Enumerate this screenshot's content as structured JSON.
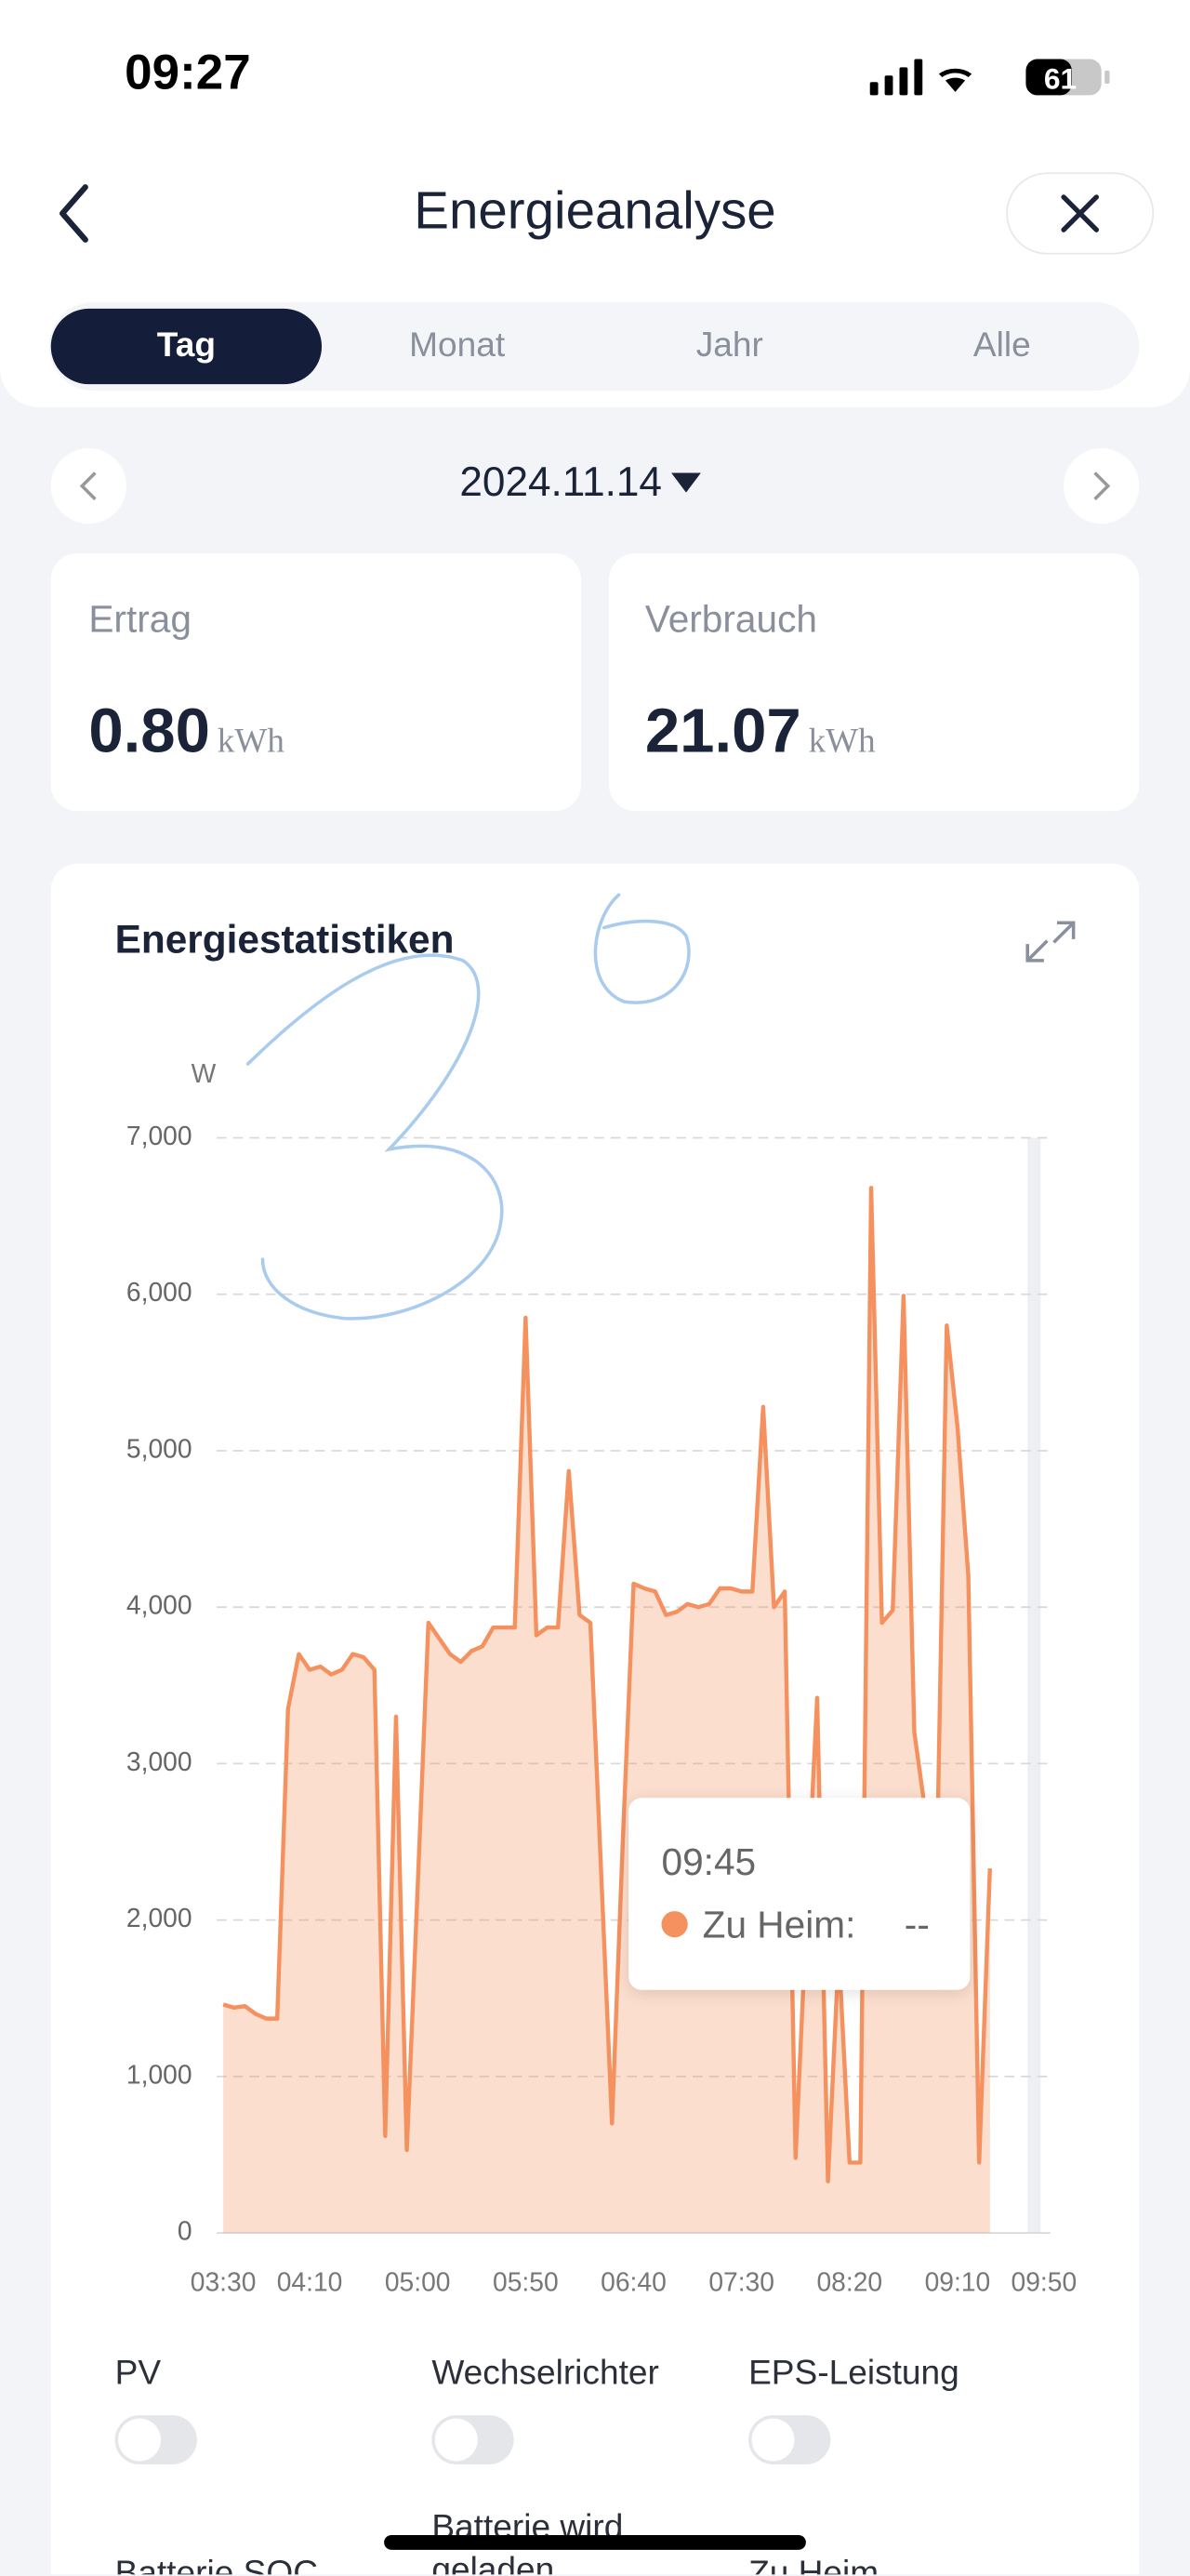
{
  "status_bar": {
    "time": "09:27",
    "battery": "61"
  },
  "header": {
    "title": "Energieanalyse"
  },
  "tabs": [
    "Tag",
    "Monat",
    "Jahr",
    "Alle"
  ],
  "date": "2024.11.14",
  "cards": [
    {
      "label": "Ertrag",
      "value": "0.80",
      "unit": "kWh"
    },
    {
      "label": "Verbrauch",
      "value": "21.07",
      "unit": "kWh"
    }
  ],
  "chart_data": {
    "type": "line",
    "title": "Energiestatistiken",
    "y_label": "W",
    "categories": [
      "03:30",
      null,
      null,
      null,
      null,
      null,
      null,
      null,
      "04:10",
      null,
      null,
      null,
      null,
      null,
      null,
      null,
      null,
      null,
      "05:00",
      null,
      null,
      null,
      null,
      null,
      null,
      null,
      null,
      null,
      "05:50",
      null,
      null,
      null,
      null,
      null,
      null,
      null,
      null,
      null,
      "06:40",
      null,
      null,
      null,
      null,
      null,
      null,
      null,
      null,
      null,
      "07:30",
      null,
      null,
      null,
      null,
      null,
      null,
      null,
      null,
      null,
      "08:20",
      null,
      null,
      null,
      null,
      null,
      null,
      null,
      null,
      null,
      "09:10",
      null,
      null,
      null,
      null,
      null,
      null,
      null,
      "09:50"
    ],
    "series": [
      {
        "color": "#f4915e",
        "values": [
          1460,
          1440,
          1450,
          1400,
          1370,
          1370,
          3350,
          3700,
          3600,
          3620,
          3570,
          3600,
          3700,
          3680,
          3600,
          620,
          3300,
          530,
          2200,
          3900,
          3800,
          3700,
          3650,
          3720,
          3750,
          3870,
          3870,
          3870,
          5850,
          3820,
          3870,
          3870,
          4870,
          3950,
          3900,
          2300,
          700,
          2500,
          4150,
          4120,
          4100,
          3950,
          3970,
          4020,
          4000,
          4020,
          4120,
          4120,
          4100,
          4100,
          5280,
          4000,
          4100,
          480,
          2000,
          3420,
          330,
          1800,
          450,
          450,
          6680,
          3900,
          3980,
          5990,
          3200,
          2700,
          2000,
          5800,
          5150,
          4200,
          450,
          2330,
          null,
          null,
          null,
          null,
          null
        ]
      }
    ],
    "ylim": [
      0,
      7000
    ],
    "yticks": [
      0,
      {
        "value": 1000,
        "label": "1,000"
      },
      {
        "value": 2000,
        "label": "2,000"
      },
      {
        "value": 3000,
        "label": "3,000"
      },
      {
        "value": 4000,
        "label": "4,000"
      },
      {
        "value": 5000,
        "label": "5,000"
      },
      {
        "value": 6000,
        "label": "6,000"
      },
      {
        "value": 7000,
        "label": "7,000"
      }
    ],
    "grid": true,
    "tooltip": {
      "time": "09:45",
      "label": "Zu Heim:",
      "value": "--"
    }
  },
  "toggles": [
    "PV",
    "Wechselrichter",
    "EPS-Leistung",
    "Batterie SOC",
    "Batterie wird geladen",
    "Zu Heim"
  ]
}
